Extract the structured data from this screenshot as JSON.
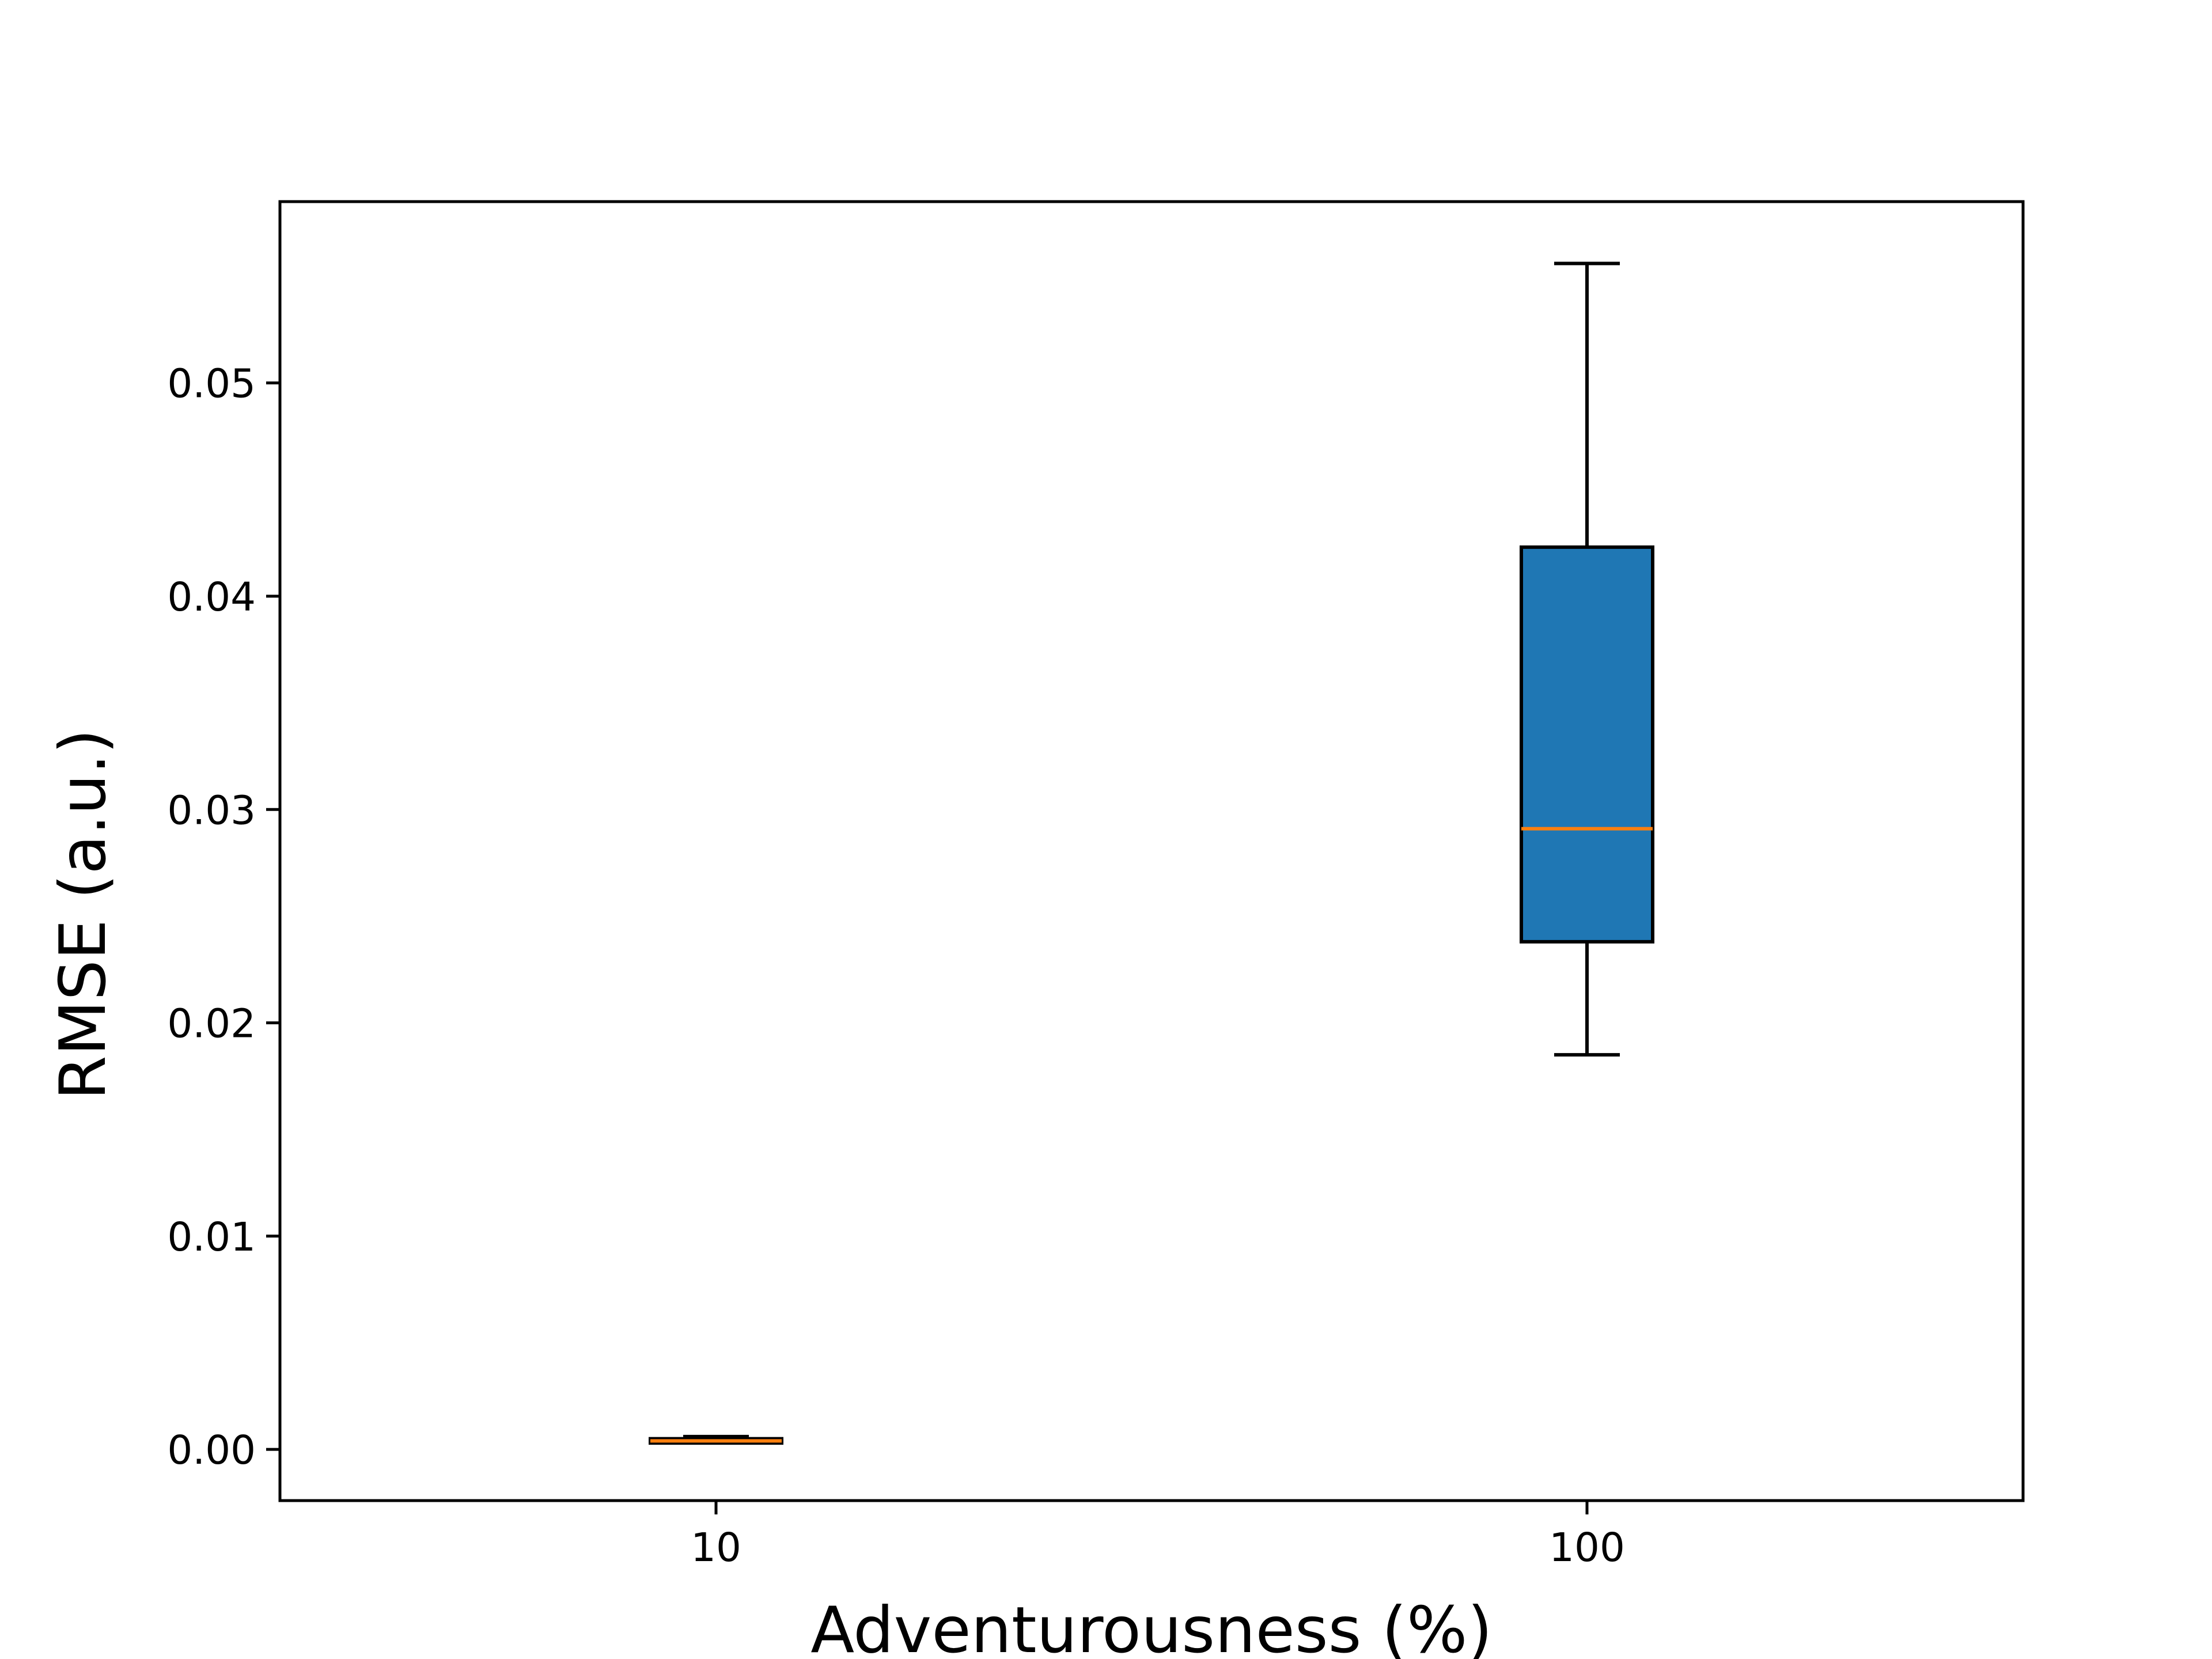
{
  "chart_data": {
    "type": "box",
    "title": "",
    "xlabel": "Adventurousness (%)",
    "ylabel": "RMSE (a.u.)",
    "categories": [
      "10",
      "100"
    ],
    "boxes": [
      {
        "category": "10",
        "whisker_low": 0.0003,
        "q1": 0.0003,
        "median": 0.0004,
        "q3": 0.0005,
        "whisker_high": 0.0006
      },
      {
        "category": "100",
        "whisker_low": 0.0185,
        "q1": 0.0238,
        "median": 0.0291,
        "q3": 0.0423,
        "whisker_high": 0.0556
      }
    ],
    "ylim": [
      -0.0024,
      0.0585
    ],
    "yticks": [
      0.0,
      0.01,
      0.02,
      0.03,
      0.04,
      0.05
    ],
    "ytick_labels": [
      "0.00",
      "0.01",
      "0.02",
      "0.03",
      "0.04",
      "0.05"
    ],
    "grid": false,
    "colors": {
      "box_fill": "#1f77b4",
      "median": "#ff7f0e",
      "edge": "#000000"
    }
  }
}
